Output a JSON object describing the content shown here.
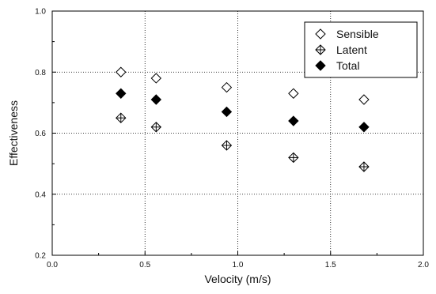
{
  "chart_data": {
    "type": "scatter",
    "title": "",
    "xlabel": "Velocity (m/s)",
    "ylabel": "Effectiveness",
    "xlim": [
      0.0,
      2.0
    ],
    "ylim": [
      0.2,
      1.0
    ],
    "xticks": [
      "0.0",
      "0.5",
      "1.0",
      "1.5",
      "2.0"
    ],
    "yticks": [
      "0.2",
      "0.4",
      "0.6",
      "0.8",
      "1.0"
    ],
    "grid": true,
    "legend_position": "top-right",
    "series": [
      {
        "name": "Sensible",
        "marker": "diamond-open",
        "color": "#000000",
        "x": [
          0.37,
          0.56,
          0.94,
          1.3,
          1.68
        ],
        "y": [
          0.8,
          0.78,
          0.75,
          0.73,
          0.71
        ]
      },
      {
        "name": "Latent",
        "marker": "diamond-cross",
        "color": "#000000",
        "x": [
          0.37,
          0.56,
          0.94,
          1.3,
          1.68
        ],
        "y": [
          0.65,
          0.62,
          0.56,
          0.52,
          0.49
        ]
      },
      {
        "name": "Total",
        "marker": "diamond-filled",
        "color": "#000000",
        "x": [
          0.37,
          0.56,
          0.94,
          1.3,
          1.68
        ],
        "y": [
          0.73,
          0.71,
          0.67,
          0.64,
          0.62
        ]
      }
    ]
  }
}
